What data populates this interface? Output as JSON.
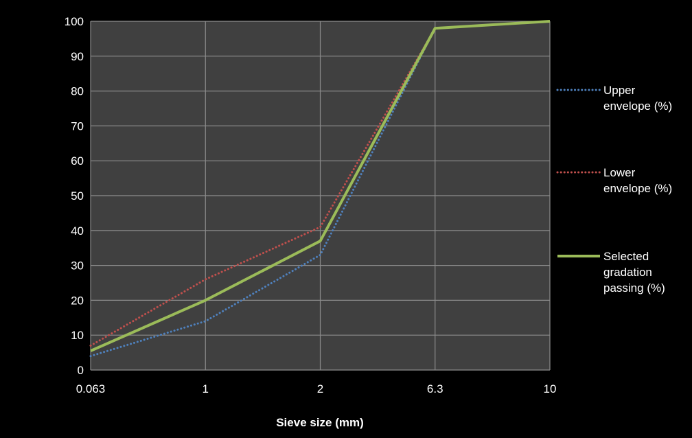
{
  "chart_data": {
    "type": "line",
    "xlabel": "Sieve size (mm)",
    "ylabel": "",
    "categories": [
      "0.063",
      "1",
      "2",
      "6.3",
      "10"
    ],
    "ylim": [
      0,
      100
    ],
    "yticks": [
      "0",
      "10",
      "20",
      "30",
      "40",
      "50",
      "60",
      "70",
      "80",
      "90",
      "100"
    ],
    "grid": true,
    "legend_position": "right",
    "series": [
      {
        "name": "Upper envelope (%)",
        "legend_lines": [
          "Upper",
          "envelope (%)"
        ],
        "values": [
          4,
          14,
          33,
          98,
          100
        ],
        "color": "#4f81bd",
        "style": "dotted"
      },
      {
        "name": "Lower envelope (%)",
        "legend_lines": [
          "Lower",
          "envelope (%)"
        ],
        "values": [
          7,
          26,
          41,
          98,
          100
        ],
        "color": "#c0504d",
        "style": "dotted"
      },
      {
        "name": "Selected gradation passing (%)",
        "legend_lines": [
          "Selected",
          "gradation",
          "passing (%)"
        ],
        "values": [
          5.5,
          20,
          37,
          98,
          100
        ],
        "color": "#9bbb59",
        "style": "solid"
      }
    ],
    "colors": {
      "background": "#000000",
      "plot_area": "#404040",
      "gridline": "#8c8c8c",
      "text": "#ffffff"
    }
  }
}
